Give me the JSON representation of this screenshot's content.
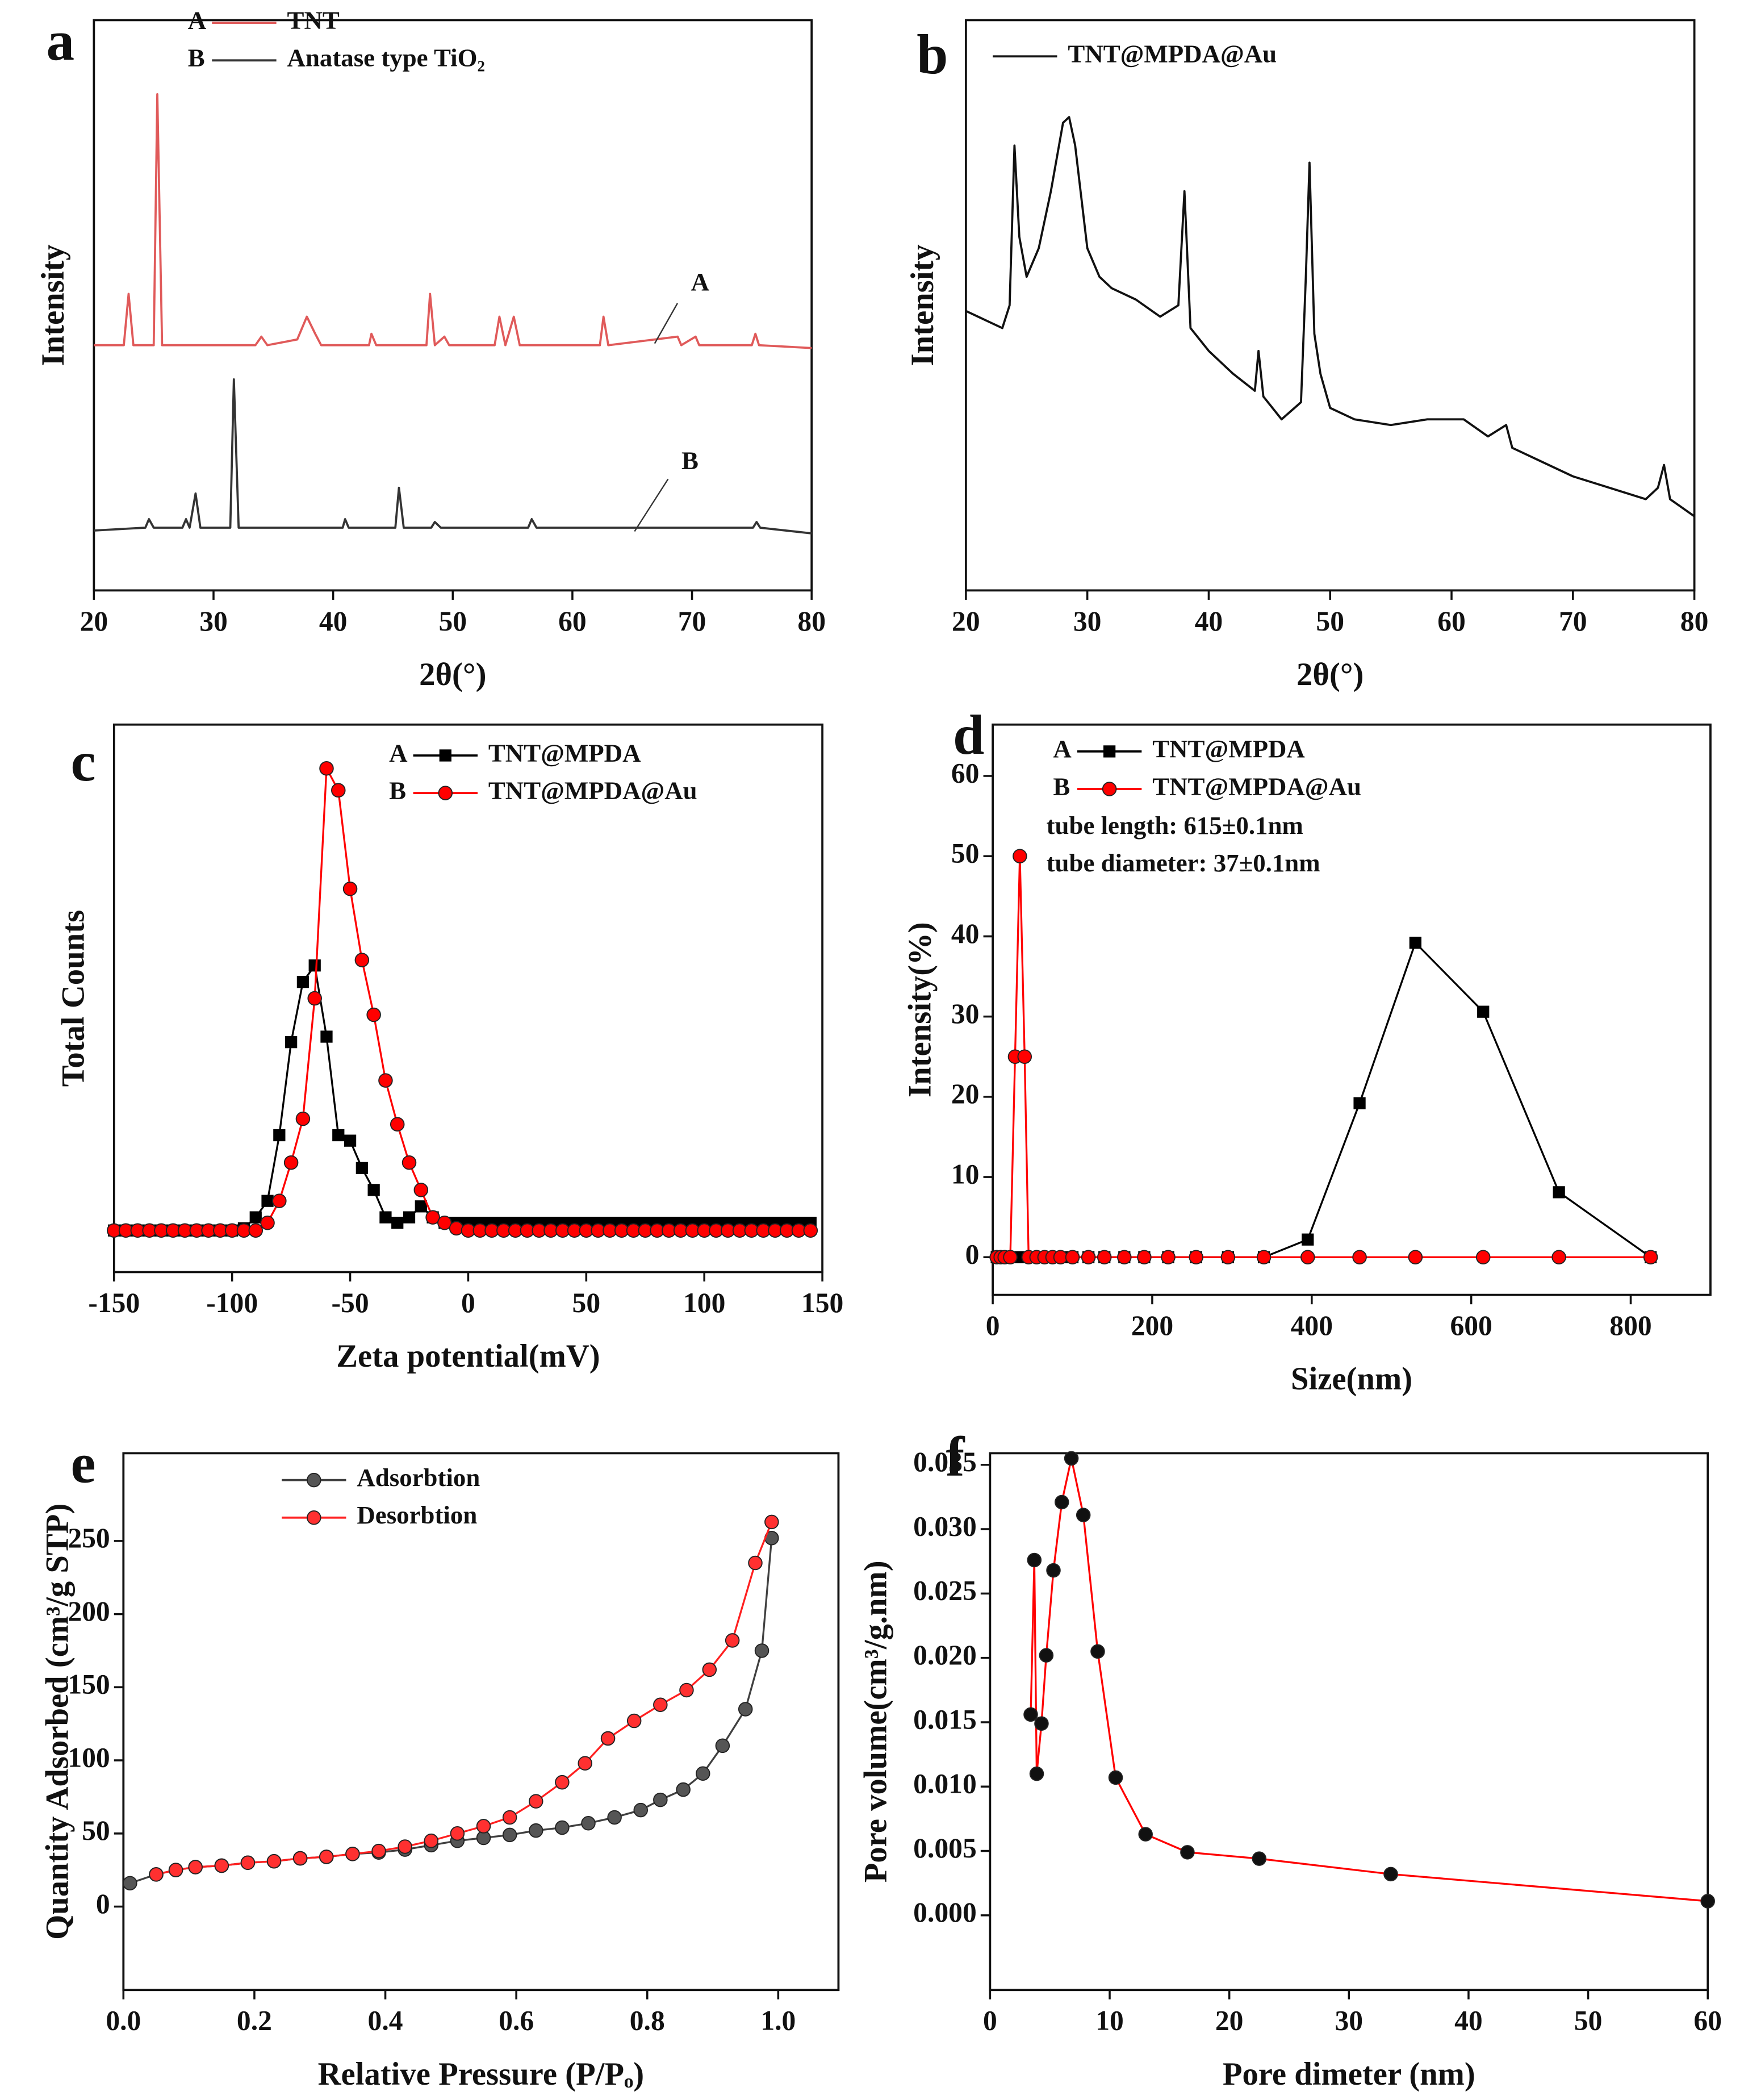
{
  "chart_data": [
    {
      "type": "line",
      "label": "a",
      "xlabel": "2θ(°)",
      "ylabel": "Intensity",
      "xlim": [
        20,
        80
      ],
      "ylim": [
        0,
        100
      ],
      "xticks": [
        20,
        30,
        40,
        50,
        60,
        70,
        80
      ],
      "annotations": [
        "A",
        "B"
      ],
      "series": [
        {
          "tag": "A",
          "name": "TNT",
          "color": "#e05a5a",
          "x": [
            20,
            22.5,
            22.9,
            23.3,
            25,
            25.3,
            25.7,
            33.5,
            34,
            34.5,
            37,
            37.8,
            38.5,
            39,
            43,
            43.2,
            43.6,
            47.8,
            48.1,
            48.5,
            49.3,
            49.7,
            53.5,
            53.9,
            54.4,
            55.1,
            55.6,
            62.3,
            62.6,
            63,
            68.8,
            69.1,
            70.3,
            70.6,
            75,
            75.3,
            75.6,
            80
          ],
          "values": [
            43,
            43,
            52,
            43,
            43,
            87,
            43,
            43,
            44.5,
            43,
            44,
            48,
            45,
            43,
            43,
            45,
            43,
            43,
            52,
            43,
            44.5,
            43,
            43,
            48,
            43,
            48,
            43,
            43,
            48,
            43,
            44.5,
            43,
            44.5,
            43,
            43,
            45,
            43,
            42.5
          ]
        },
        {
          "tag": "B",
          "name": "Anatase type TiO₂",
          "color": "#333333",
          "x": [
            20,
            24.3,
            24.6,
            25,
            27.4,
            27.7,
            28,
            28.5,
            28.9,
            31.4,
            31.7,
            32.1,
            40.8,
            41,
            41.3,
            45.2,
            45.5,
            45.9,
            48.2,
            48.5,
            49,
            56.3,
            56.6,
            57,
            75.1,
            75.4,
            75.7,
            80
          ],
          "values": [
            10.5,
            11,
            12.5,
            11,
            11,
            12.5,
            11,
            17,
            11,
            11,
            37,
            11,
            11,
            12.5,
            11,
            11,
            18,
            11,
            11,
            12,
            11,
            11,
            12.5,
            11,
            11,
            12,
            11,
            10
          ]
        }
      ]
    },
    {
      "type": "line",
      "label": "b",
      "xlabel": "2θ(°)",
      "ylabel": "Intensity",
      "xlim": [
        20,
        80
      ],
      "ylim": [
        0,
        100
      ],
      "xticks": [
        20,
        30,
        40,
        50,
        60,
        70,
        80
      ],
      "series": [
        {
          "name": "TNT@MPDA@Au",
          "color": "#111111",
          "x": [
            20,
            21,
            22,
            23,
            23.6,
            24,
            24.4,
            25,
            26,
            27,
            28,
            28.5,
            29,
            30,
            31,
            32,
            34,
            36,
            37.5,
            38,
            38.5,
            40,
            42,
            43.8,
            44.1,
            44.5,
            46,
            47.6,
            48,
            48.3,
            48.7,
            49.2,
            50,
            52,
            55,
            58,
            61,
            63,
            64.5,
            65,
            67,
            70,
            73,
            76,
            77,
            77.5,
            78,
            80
          ],
          "values": [
            49,
            48,
            47,
            46,
            50,
            78,
            62,
            55,
            60,
            70,
            82,
            83,
            78,
            60,
            55,
            53,
            51,
            48,
            50,
            70,
            46,
            42,
            38,
            35,
            42,
            34,
            30,
            33,
            55,
            75,
            45,
            38,
            32,
            30,
            29,
            30,
            30,
            27,
            29,
            25,
            23,
            20,
            18,
            16,
            18,
            22,
            16,
            13
          ]
        }
      ]
    },
    {
      "type": "line",
      "label": "c",
      "xlabel": "Zeta potential(mV)",
      "ylabel": "Total Counts",
      "xlim": [
        -150,
        150
      ],
      "ylim": [
        0,
        100
      ],
      "xticks": [
        -150,
        -100,
        -50,
        0,
        50,
        100,
        150
      ],
      "x": [
        -150,
        -145,
        -140,
        -135,
        -130,
        -125,
        -120,
        -115,
        -110,
        -105,
        -100,
        -95,
        -90,
        -85,
        -80,
        -75,
        -70,
        -65,
        -60,
        -55,
        -50,
        -45,
        -40,
        -35,
        -30,
        -25,
        -20,
        -15,
        -10,
        -5,
        0,
        5,
        10,
        15,
        20,
        25,
        30,
        35,
        40,
        45,
        50,
        55,
        60,
        65,
        70,
        75,
        80,
        85,
        90,
        95,
        100,
        105,
        110,
        115,
        120,
        125,
        130,
        135,
        140,
        145
      ],
      "series": [
        {
          "tag": "A",
          "name": "TNT@MPDA",
          "color": "#000000",
          "marker": "square",
          "marker_color": "#000000",
          "values": [
            7.6,
            7.6,
            7.6,
            7.6,
            7.6,
            7.6,
            7.6,
            7.6,
            7.6,
            7.6,
            7.6,
            8,
            10,
            13,
            25,
            42,
            53,
            56,
            43,
            25,
            24,
            19,
            15,
            10,
            9,
            10,
            12,
            10,
            9,
            9,
            9,
            9,
            9,
            9,
            9,
            9,
            9,
            9,
            9,
            9,
            9,
            9,
            9,
            9,
            9,
            9,
            9,
            9,
            9,
            9,
            9,
            9,
            9,
            9,
            9,
            9,
            9,
            9,
            9,
            9
          ]
        },
        {
          "tag": "B",
          "name": "TNT@MPDA@Au",
          "color": "#ff0000",
          "marker": "circle",
          "marker_color": "#ff0000",
          "values": [
            7.6,
            7.6,
            7.6,
            7.6,
            7.6,
            7.6,
            7.6,
            7.6,
            7.6,
            7.6,
            7.6,
            7.6,
            7.6,
            9,
            13,
            20,
            28,
            50,
            92,
            88,
            70,
            57,
            47,
            35,
            27,
            20,
            15,
            10,
            9,
            8,
            7.6,
            7.6,
            7.6,
            7.6,
            7.6,
            7.6,
            7.6,
            7.6,
            7.6,
            7.6,
            7.6,
            7.6,
            7.6,
            7.6,
            7.6,
            7.6,
            7.6,
            7.6,
            7.6,
            7.6,
            7.6,
            7.6,
            7.6,
            7.6,
            7.6,
            7.6,
            7.6,
            7.6,
            7.6,
            7.6
          ]
        }
      ]
    },
    {
      "type": "line",
      "label": "d",
      "xlabel": "Size(nm)",
      "ylabel": "Intensity(%)",
      "xlim": [
        0,
        900
      ],
      "ylim": [
        -4.7,
        66.4
      ],
      "xticks": [
        0,
        200,
        400,
        600,
        800
      ],
      "yticks": [
        0,
        10,
        20,
        30,
        40,
        50,
        60
      ],
      "annotations": [
        "tube length: 615±0.1nm",
        "tube diameter: 37±0.1nm"
      ],
      "series": [
        {
          "tag": "A",
          "name": "TNT@MPDA",
          "color": "#000000",
          "marker": "square",
          "marker_color": "#000000",
          "x": [
            5,
            10,
            15,
            22,
            30,
            38,
            50,
            60,
            70,
            80,
            90,
            100,
            120,
            140,
            165,
            190,
            220,
            255,
            295,
            340,
            395,
            460,
            530,
            615,
            710,
            825
          ],
          "values": [
            0,
            0,
            0,
            0,
            0,
            0,
            0,
            0,
            0,
            0,
            0,
            0,
            0,
            0,
            0,
            0,
            0,
            0,
            0,
            0,
            2.2,
            19.2,
            39.2,
            30.6,
            8.1,
            0
          ]
        },
        {
          "tag": "B",
          "name": "TNT@MPDA@Au",
          "color": "#ff0000",
          "marker": "circle",
          "marker_color": "#ff0000",
          "x": [
            5,
            10,
            15,
            22,
            28,
            34,
            40,
            45,
            55,
            65,
            75,
            85,
            100,
            120,
            140,
            165,
            190,
            220,
            255,
            295,
            340,
            395,
            460,
            530,
            615,
            710,
            825
          ],
          "values": [
            0,
            0,
            0,
            0,
            25,
            50,
            25,
            0,
            0,
            0,
            0,
            0,
            0,
            0,
            0,
            0,
            0,
            0,
            0,
            0,
            0,
            0,
            0,
            0,
            0,
            0,
            0
          ]
        }
      ]
    },
    {
      "type": "line",
      "label": "e",
      "xlabel": "Relative Pressure (P/Pₒ)",
      "ylabel": "Quantity Adsorbed (cm³/g STP)",
      "xlim": [
        0,
        1.092
      ],
      "ylim": [
        -57,
        310
      ],
      "xticks": [
        {
          "value": 0,
          "label": "0.0"
        },
        {
          "value": 0.2,
          "label": "0.2"
        },
        {
          "value": 0.4,
          "label": "0.4"
        },
        {
          "value": 0.6,
          "label": "0.6"
        },
        {
          "value": 0.8,
          "label": "0.8"
        },
        {
          "value": 1,
          "label": "1.0"
        }
      ],
      "yticks": [
        0,
        50,
        100,
        150,
        200,
        250
      ],
      "series": [
        {
          "name": "Adsorbtion",
          "color": "#404040",
          "marker": "circle",
          "marker_color": "#555555",
          "x": [
            0.01,
            0.05,
            0.08,
            0.11,
            0.15,
            0.19,
            0.23,
            0.27,
            0.31,
            0.35,
            0.39,
            0.43,
            0.47,
            0.51,
            0.55,
            0.59,
            0.63,
            0.67,
            0.71,
            0.75,
            0.79,
            0.82,
            0.855,
            0.885,
            0.915,
            0.95,
            0.975,
            0.99
          ],
          "values": [
            16,
            22,
            25,
            27,
            28,
            30,
            31,
            33,
            34,
            36,
            37,
            39,
            42,
            45,
            47,
            49,
            52,
            54,
            57,
            61,
            66,
            73,
            80,
            91,
            110,
            135,
            175,
            252
          ]
        },
        {
          "name": "Desorbtion",
          "color": "#ff2020",
          "marker": "circle",
          "marker_color": "#ff3030",
          "x": [
            0.05,
            0.08,
            0.11,
            0.15,
            0.19,
            0.23,
            0.27,
            0.31,
            0.35,
            0.39,
            0.43,
            0.47,
            0.51,
            0.55,
            0.59,
            0.63,
            0.67,
            0.705,
            0.74,
            0.78,
            0.82,
            0.86,
            0.895,
            0.93,
            0.965,
            0.99
          ],
          "values": [
            22,
            25,
            27,
            28,
            30,
            31,
            33,
            34,
            36,
            38,
            41,
            45,
            50,
            55,
            61,
            72,
            85,
            98,
            115,
            127,
            138,
            148,
            162,
            182,
            235,
            263
          ]
        }
      ]
    },
    {
      "type": "line",
      "label": "f",
      "xlabel": "Pore dimeter (nm)",
      "ylabel": "Pore volume(cm³/g.nm)",
      "xlim": [
        0,
        60
      ],
      "ylim": [
        -0.0058,
        0.0359
      ],
      "xticks": [
        0,
        10,
        20,
        30,
        40,
        50,
        60
      ],
      "yticks": [
        {
          "value": 0,
          "label": "0.000"
        },
        {
          "value": 0.005,
          "label": "0.005"
        },
        {
          "value": 0.01,
          "label": "0.010"
        },
        {
          "value": 0.015,
          "label": "0.015"
        },
        {
          "value": 0.02,
          "label": "0.020"
        },
        {
          "value": 0.025,
          "label": "0.025"
        },
        {
          "value": 0.03,
          "label": "0.030"
        },
        {
          "value": 0.035,
          "label": "0.035"
        }
      ],
      "series": [
        {
          "color": "#ff0000",
          "marker": "circle",
          "marker_color": "#111111",
          "x": [
            3.4,
            3.7,
            3.9,
            4.3,
            4.7,
            5.3,
            6.0,
            6.8,
            7.8,
            9.0,
            10.5,
            13,
            16.5,
            22.5,
            33.5,
            60
          ],
          "values": [
            0.0156,
            0.0276,
            0.011,
            0.0149,
            0.0202,
            0.0268,
            0.0321,
            0.0355,
            0.0311,
            0.0205,
            0.0107,
            0.0063,
            0.0049,
            0.0044,
            0.0032,
            0.0011
          ]
        }
      ]
    }
  ]
}
